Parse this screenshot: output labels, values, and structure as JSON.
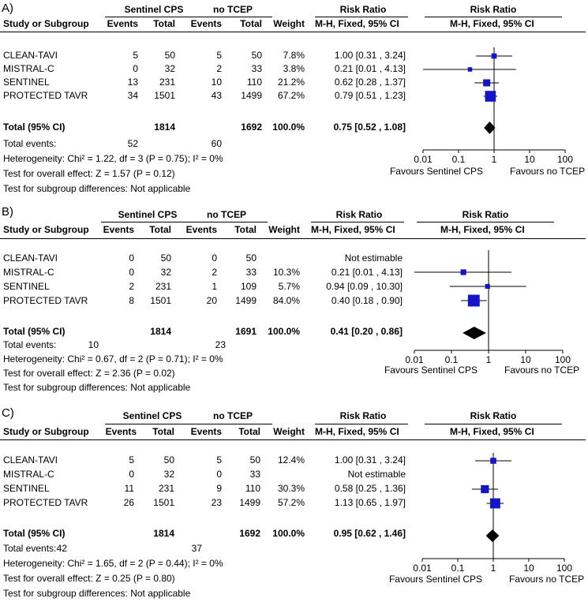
{
  "panels": [
    {
      "label": "A)",
      "header": {
        "group1": "Sentinel CPS",
        "group2": "no TCEP",
        "rr1": "Risk Ratio",
        "rr2": "Risk Ratio",
        "study": "Study or Subgroup",
        "events1": "Events",
        "total1": "Total",
        "events2": "Events",
        "total2": "Total",
        "weight": "Weight",
        "method1": "M-H, Fixed, 95% CI",
        "method2": "M-H, Fixed, 95% CI"
      },
      "rows": [
        {
          "study": "CLEAN-TAVI",
          "e1": "5",
          "t1": "50",
          "e2": "5",
          "t2": "50",
          "weight": "7.8%",
          "ci": "1.00 [0.31 , 3.24]"
        },
        {
          "study": "MISTRAL-C",
          "e1": "0",
          "t1": "32",
          "e2": "2",
          "t2": "33",
          "weight": "3.8%",
          "ci": "0.21 [0.01 , 4.13]"
        },
        {
          "study": "SENTINEL",
          "e1": "13",
          "t1": "231",
          "e2": "10",
          "t2": "110",
          "weight": "21.2%",
          "ci": "0.62 [0.28 , 1.37]"
        },
        {
          "study": "PROTECTED TAVR",
          "e1": "34",
          "t1": "1501",
          "e2": "43",
          "t2": "1499",
          "weight": "67.2%",
          "ci": "0.79 [0.51 , 1.23]"
        }
      ],
      "total": {
        "label": "Total (95% CI)",
        "t1": "1814",
        "t2": "1692",
        "weight": "100.0%",
        "ci": "0.75 [0.52 , 1.08]"
      },
      "total_events": {
        "label": "Total events:",
        "e1": "52",
        "e2": "60"
      },
      "heterogeneity": "Heterogeneity: Chi² = 1.22, df = 3 (P = 0.75); I² = 0%",
      "overall": "Test for overall effect: Z = 1.57 (P = 0.12)",
      "subgroup": "Test for subgroup differences: Not applicable",
      "favours_left": "Favours Sentinel CPS",
      "favours_right": "Favours no TCEP"
    },
    {
      "label": "B)",
      "header": {
        "group1": "Sentinel CPS",
        "group2": "no TCEP",
        "rr1": "Risk Ratio",
        "rr2": "Risk Ratio",
        "study": "Study or Subgroup",
        "events1": "Events",
        "total1": "Total",
        "events2": "Events",
        "total2": "Total",
        "weight": "Weight",
        "method1": "M-H, Fixed, 95% CI",
        "method2": "M-H, Fixed, 95% CI"
      },
      "rows": [
        {
          "study": "CLEAN-TAVI",
          "e1": "0",
          "t1": "50",
          "e2": "0",
          "t2": "50",
          "weight": "",
          "ci": "Not estimable"
        },
        {
          "study": "MISTRAL-C",
          "e1": "0",
          "t1": "32",
          "e2": "2",
          "t2": "33",
          "weight": "10.3%",
          "ci": "0.21 [0.01 , 4.13]"
        },
        {
          "study": "SENTINEL",
          "e1": "2",
          "t1": "231",
          "e2": "1",
          "t2": "109",
          "weight": "5.7%",
          "ci": "0.94 [0.09 , 10.30]"
        },
        {
          "study": "PROTECTED TAVR",
          "e1": "8",
          "t1": "1501",
          "e2": "20",
          "t2": "1499",
          "weight": "84.0%",
          "ci": "0.40 [0.18 , 0.90]"
        }
      ],
      "total": {
        "label": "Total (95% CI)",
        "t1": "1814",
        "t2": "1691",
        "weight": "100.0%",
        "ci": "0.41 [0.20 , 0.86]"
      },
      "total_events": {
        "label": "Total events:",
        "e1": "10",
        "e2": "23"
      },
      "heterogeneity": "Heterogeneity: Chi² = 0.67, df = 2 (P = 0.71); I² = 0%",
      "overall": "Test for overall effect: Z = 2.36 (P = 0.02)",
      "subgroup": "Test for subgroup differences: Not applicable",
      "favours_left": "Favours Sentinel CPS",
      "favours_right": "Favours no TCEP"
    },
    {
      "label": "C)",
      "header": {
        "group1": "Sentinel CPS",
        "group2": "no TCEP",
        "rr1": "Risk Ratio",
        "rr2": "Risk Ratio",
        "study": "Study or Subgroup",
        "events1": "Events",
        "total1": "Total",
        "events2": "Events",
        "total2": "Total",
        "weight": "Weight",
        "method1": "M-H, Fixed, 95% CI",
        "method2": "M-H, Fixed, 95% CI"
      },
      "rows": [
        {
          "study": "CLEAN-TAVI",
          "e1": "5",
          "t1": "50",
          "e2": "5",
          "t2": "50",
          "weight": "12.4%",
          "ci": "1.00 [0.31 , 3.24]"
        },
        {
          "study": "MISTRAL-C",
          "e1": "0",
          "t1": "32",
          "e2": "0",
          "t2": "33",
          "weight": "",
          "ci": "Not estimable"
        },
        {
          "study": "SENTINEL",
          "e1": "11",
          "t1": "231",
          "e2": "9",
          "t2": "110",
          "weight": "30.3%",
          "ci": "0.58 [0.25 , 1.36]"
        },
        {
          "study": "PROTECTED TAVR",
          "e1": "26",
          "t1": "1501",
          "e2": "23",
          "t2": "1499",
          "weight": "57.2%",
          "ci": "1.13 [0.65 , 1.97]"
        }
      ],
      "total": {
        "label": "Total (95% CI)",
        "t1": "1814",
        "t2": "1692",
        "weight": "100.0%",
        "ci": "0.95 [0.62 , 1.46]"
      },
      "total_events": {
        "label": "Total events:",
        "e1": "42",
        "e2": "37"
      },
      "heterogeneity": "Heterogeneity: Chi² = 1.65, df = 2 (P = 0.44); I² = 0%",
      "overall": "Test for overall effect: Z = 0.25 (P = 0.80)",
      "subgroup": "Test for subgroup differences: Not applicable",
      "favours_left": "Favours Sentinel CPS",
      "favours_right": "Favours no TCEP"
    }
  ],
  "colors": {
    "study_marker": "#1515c8",
    "summary_diamond": "#000000",
    "lines": "#000000"
  },
  "chart_data": [
    {
      "type": "forest",
      "title": "A)",
      "scale": "log",
      "xlim": [
        0.01,
        100
      ],
      "ticks": [
        0.01,
        0.1,
        1,
        10,
        100
      ],
      "tick_labels": [
        "0.01",
        "0.1",
        "1",
        "10",
        "100"
      ],
      "studies": [
        {
          "name": "CLEAN-TAVI",
          "rr": 1.0,
          "lo": 0.31,
          "hi": 3.24,
          "weight": 7.8
        },
        {
          "name": "MISTRAL-C",
          "rr": 0.21,
          "lo": 0.01,
          "hi": 4.13,
          "weight": 3.8
        },
        {
          "name": "SENTINEL",
          "rr": 0.62,
          "lo": 0.28,
          "hi": 1.37,
          "weight": 21.2
        },
        {
          "name": "PROTECTED TAVR",
          "rr": 0.79,
          "lo": 0.51,
          "hi": 1.23,
          "weight": 67.2
        }
      ],
      "pooled": {
        "rr": 0.75,
        "lo": 0.52,
        "hi": 1.08
      },
      "xlabel_left": "Favours Sentinel CPS",
      "xlabel_right": "Favours no TCEP"
    },
    {
      "type": "forest",
      "title": "B)",
      "scale": "log",
      "xlim": [
        0.01,
        100
      ],
      "ticks": [
        0.01,
        0.1,
        1,
        10,
        100
      ],
      "tick_labels": [
        "0.01",
        "0.1",
        "1",
        "10",
        "100"
      ],
      "studies": [
        {
          "name": "CLEAN-TAVI",
          "rr": null,
          "lo": null,
          "hi": null,
          "weight": null
        },
        {
          "name": "MISTRAL-C",
          "rr": 0.21,
          "lo": 0.01,
          "hi": 4.13,
          "weight": 10.3
        },
        {
          "name": "SENTINEL",
          "rr": 0.94,
          "lo": 0.09,
          "hi": 10.3,
          "weight": 5.7
        },
        {
          "name": "PROTECTED TAVR",
          "rr": 0.4,
          "lo": 0.18,
          "hi": 0.9,
          "weight": 84.0
        }
      ],
      "pooled": {
        "rr": 0.41,
        "lo": 0.2,
        "hi": 0.86
      },
      "xlabel_left": "Favours Sentinel CPS",
      "xlabel_right": "Favours no TCEP"
    },
    {
      "type": "forest",
      "title": "C)",
      "scale": "log",
      "xlim": [
        0.01,
        100
      ],
      "ticks": [
        0.01,
        0.1,
        1,
        10,
        100
      ],
      "tick_labels": [
        "0.01",
        "0.1",
        "1",
        "10",
        "100"
      ],
      "studies": [
        {
          "name": "CLEAN-TAVI",
          "rr": 1.0,
          "lo": 0.31,
          "hi": 3.24,
          "weight": 12.4
        },
        {
          "name": "MISTRAL-C",
          "rr": null,
          "lo": null,
          "hi": null,
          "weight": null
        },
        {
          "name": "SENTINEL",
          "rr": 0.58,
          "lo": 0.25,
          "hi": 1.36,
          "weight": 30.3
        },
        {
          "name": "PROTECTED TAVR",
          "rr": 1.13,
          "lo": 0.65,
          "hi": 1.97,
          "weight": 57.2
        }
      ],
      "pooled": {
        "rr": 0.95,
        "lo": 0.62,
        "hi": 1.46
      },
      "xlabel_left": "Favours Sentinel CPS",
      "xlabel_right": "Favours no TCEP"
    }
  ]
}
